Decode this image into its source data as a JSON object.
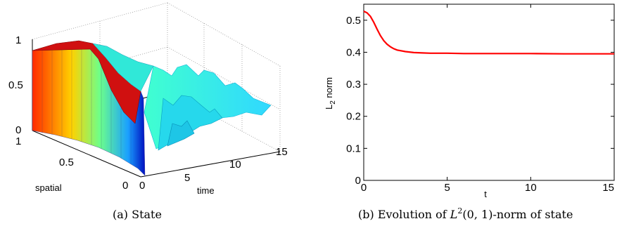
{
  "chart_data": [
    {
      "type": "surface",
      "caption": "(a) State",
      "xlabel": "time",
      "ylabel": "spatial",
      "x_ticks": [
        "0",
        "5",
        "10",
        "15"
      ],
      "y_ticks": [
        "0",
        "0.5",
        "1"
      ],
      "z_ticks": [
        "0",
        "0.5",
        "1"
      ],
      "xlim": [
        0,
        15
      ],
      "ylim": [
        0,
        1
      ],
      "zlim": [
        0,
        1
      ],
      "colormap": "jet",
      "grid": true
    },
    {
      "type": "line",
      "caption": "(b) Evolution of L²(0,1)-norm of state",
      "caption_prefix": "(b) Evolution of ",
      "caption_math": "L",
      "caption_sup": "2",
      "caption_args": "(0, 1)",
      "caption_suffix": "-norm of state",
      "xlabel": "t",
      "ylabel_main": "L",
      "ylabel_sub": "2",
      "ylabel_rest": " norm",
      "xlim": [
        0,
        15
      ],
      "ylim": [
        0,
        0.55
      ],
      "x_ticks": [
        0,
        5,
        10,
        15
      ],
      "y_ticks": [
        0,
        0.1,
        0.2,
        0.3,
        0.4,
        0.5
      ],
      "x_tick_labels": [
        "0",
        "5",
        "10",
        "15"
      ],
      "y_tick_labels": [
        "0",
        "0.1",
        "0.2",
        "0.3",
        "0.4",
        "0.5"
      ],
      "series": [
        {
          "color": "#ff0000",
          "x": [
            0,
            0.2,
            0.4,
            0.6,
            0.8,
            1.0,
            1.2,
            1.4,
            1.6,
            1.8,
            2.0,
            2.5,
            3.0,
            3.5,
            4.0,
            5.0,
            6.0,
            8.0,
            10.0,
            12.0,
            15.0
          ],
          "y": [
            0.528,
            0.523,
            0.512,
            0.494,
            0.472,
            0.452,
            0.436,
            0.425,
            0.417,
            0.411,
            0.407,
            0.402,
            0.399,
            0.398,
            0.397,
            0.397,
            0.396,
            0.396,
            0.396,
            0.395,
            0.395
          ]
        }
      ]
    }
  ]
}
